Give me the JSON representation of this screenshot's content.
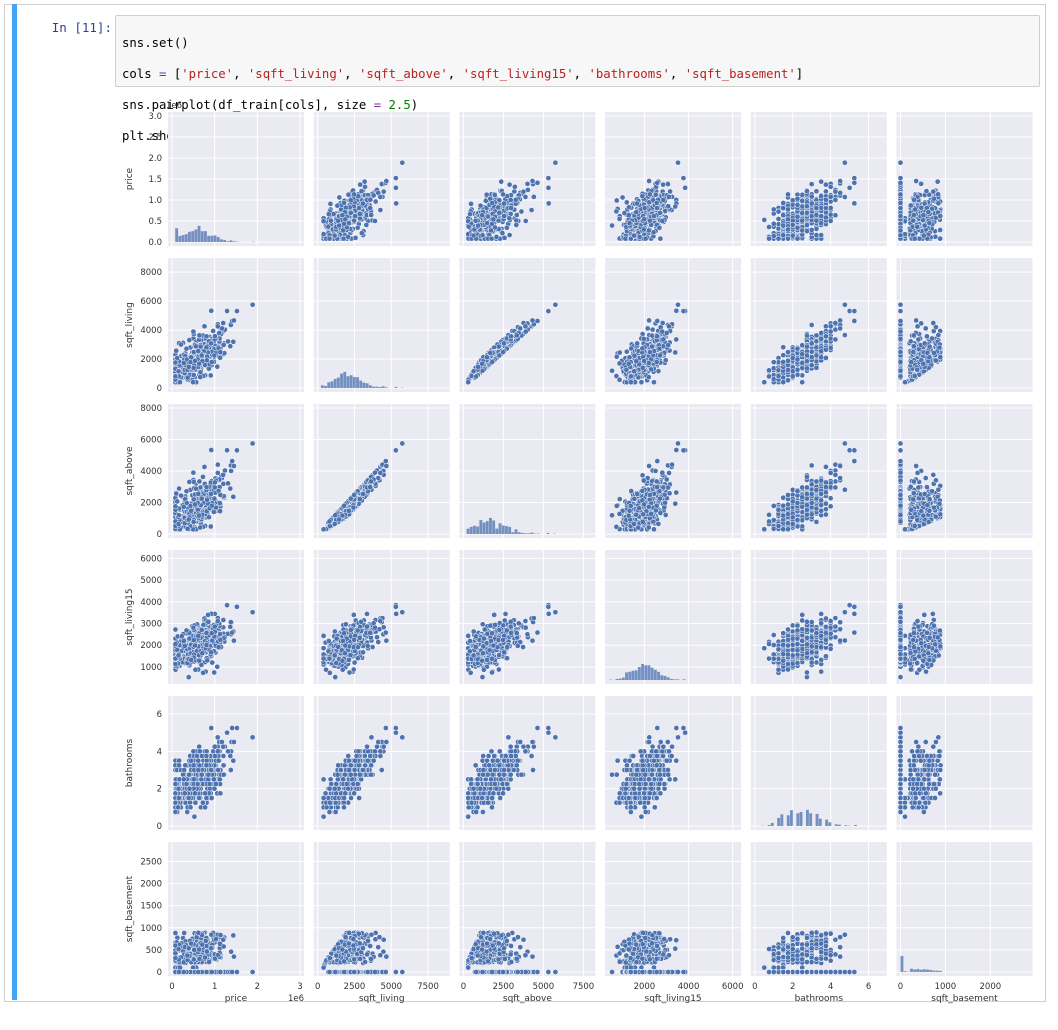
{
  "cell": {
    "prompt": "In [11]:",
    "code_lines": [
      "sns.set()",
      "cols = ['price', 'sqft_living', 'sqft_above', 'sqft_living15', 'bathrooms', 'sqft_basement']",
      "sns.pairplot(df_train[cols], size = 2.5)",
      "plt.show();"
    ]
  },
  "chart_data": {
    "type": "scatter",
    "kind": "pairplot",
    "variables": [
      "price",
      "sqft_living",
      "sqft_above",
      "sqft_living15",
      "bathrooms",
      "sqft_basement"
    ],
    "offset_text": {
      "price_y": "1e6",
      "price_x": "1e6"
    },
    "ranges": {
      "price": [
        0,
        3000000
      ],
      "sqft_living": [
        0,
        8700
      ],
      "sqft_above": [
        0,
        8000
      ],
      "sqft_living15": [
        400,
        6200
      ],
      "bathrooms": [
        0,
        6.75
      ],
      "sqft_basement": [
        0,
        2850
      ]
    },
    "ticks": {
      "price": {
        "values": [
          0,
          0.5,
          1.0,
          1.5,
          2.0,
          2.5,
          3.0
        ],
        "labels": [
          "0.0",
          "0.5",
          "1.0",
          "1.5",
          "2.0",
          "2.5",
          "3.0"
        ],
        "x_values": [
          0,
          1,
          2,
          3
        ],
        "x_labels": [
          "0",
          "1",
          "2",
          "3"
        ]
      },
      "sqft_living": {
        "values": [
          0,
          2000,
          4000,
          6000,
          8000
        ],
        "labels": [
          "0",
          "2000",
          "4000",
          "6000",
          "8000"
        ],
        "x_values": [
          0,
          2500,
          5000,
          7500
        ],
        "x_labels": [
          "0",
          "2500",
          "5000",
          "7500"
        ]
      },
      "sqft_above": {
        "values": [
          0,
          2000,
          4000,
          6000,
          8000
        ],
        "labels": [
          "0",
          "2000",
          "4000",
          "6000",
          "8000"
        ],
        "x_values": [
          0,
          2500,
          5000,
          7500
        ],
        "x_labels": [
          "0",
          "2500",
          "5000",
          "7500"
        ]
      },
      "sqft_living15": {
        "values": [
          1000,
          2000,
          3000,
          4000,
          5000,
          6000
        ],
        "labels": [
          "1000",
          "2000",
          "3000",
          "4000",
          "5000",
          "6000"
        ],
        "x_values": [
          2000,
          4000,
          6000
        ],
        "x_labels": [
          "2000",
          "4000",
          "6000"
        ]
      },
      "bathrooms": {
        "values": [
          0,
          2,
          4,
          6
        ],
        "labels": [
          "0",
          "2",
          "4",
          "6"
        ],
        "x_values": [
          0,
          2,
          4,
          6
        ],
        "x_labels": [
          "0",
          "2",
          "4",
          "6"
        ]
      },
      "sqft_basement": {
        "values": [
          0,
          500,
          1000,
          1500,
          2000,
          2500
        ],
        "labels": [
          "0",
          "500",
          "1000",
          "1500",
          "2000",
          "2500"
        ],
        "x_values": [
          0,
          1000,
          2000
        ],
        "x_labels": [
          "0",
          "1000",
          "2000"
        ]
      }
    },
    "point_color": "#4c72b0",
    "edge_color": "#ffffff",
    "panel_bg": "#eaeaf2",
    "grid": true
  }
}
